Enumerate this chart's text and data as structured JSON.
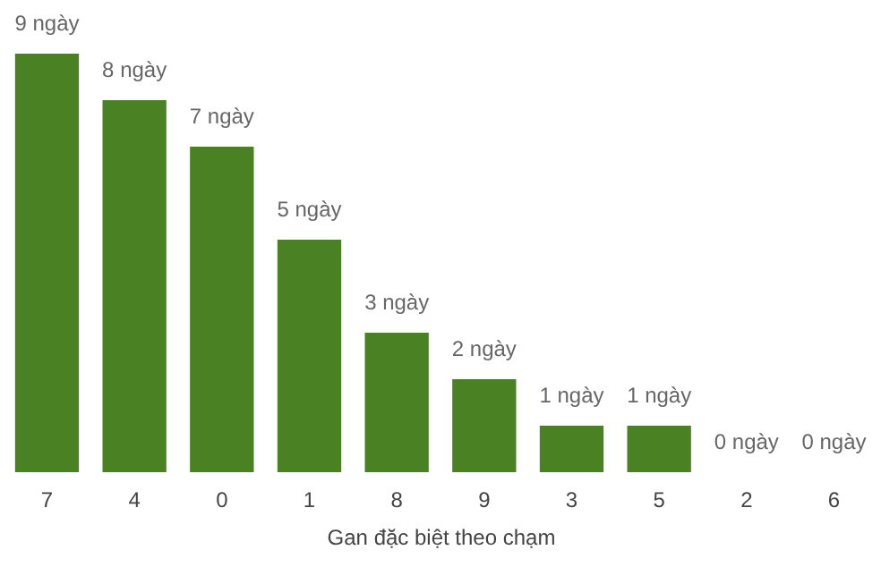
{
  "chart_data": {
    "type": "bar",
    "xlabel": "Gan đặc biệt theo chạm",
    "categories": [
      "7",
      "4",
      "0",
      "1",
      "8",
      "9",
      "3",
      "5",
      "2",
      "6"
    ],
    "values": [
      9,
      8,
      7,
      5,
      3,
      2,
      1,
      1,
      0,
      0
    ],
    "value_labels": [
      "9 ngày",
      "8 ngày",
      "7 ngày",
      "5 ngày",
      "3 ngày",
      "2 ngày",
      "1 ngày",
      "1 ngày",
      "0 ngày",
      "0 ngày"
    ],
    "color": "#4a8123",
    "tick_labels": "x"
  }
}
